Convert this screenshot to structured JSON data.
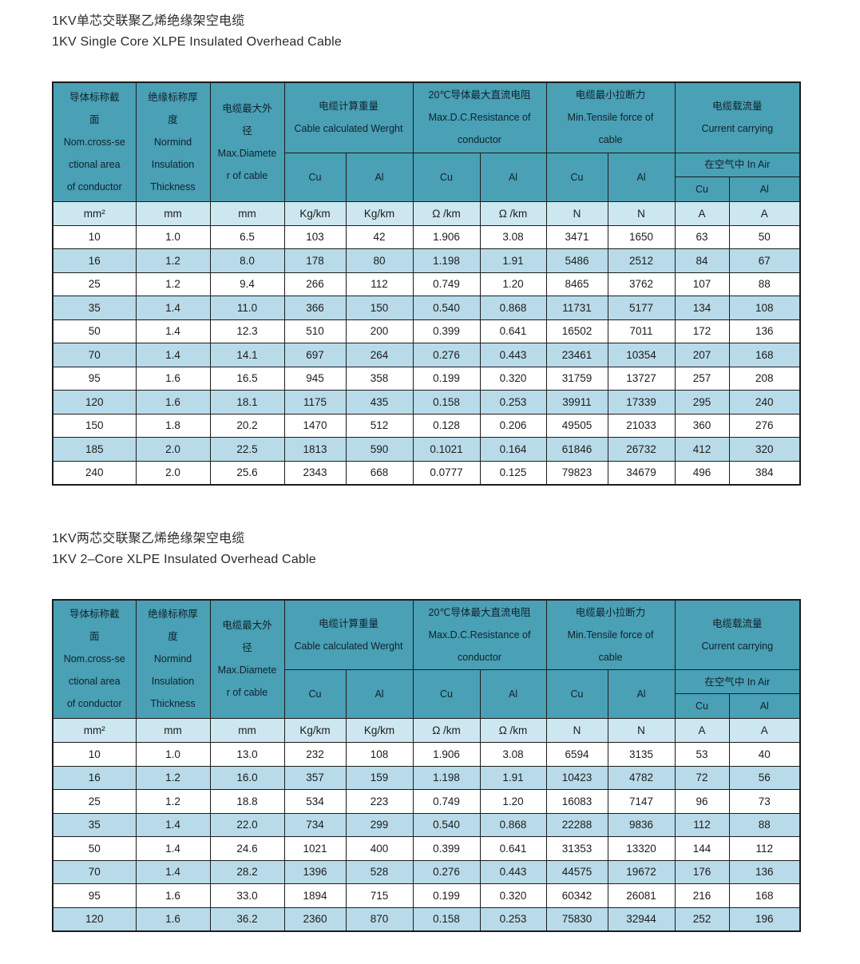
{
  "colors": {
    "header_bg": "#4aa0b5",
    "unit_row_bg": "#cde7f0",
    "alt_row_bg": "#b9dbe9",
    "row_bg": "#ffffff",
    "border": "#1c1c1c"
  },
  "table_header": {
    "conductor": "导体标称截\n面\nNom.cross-se\nctional area\nof conductor",
    "insulation": "绝缘标称厚\n度\nNormind\nInsulation\nThickness",
    "diameter": "电缆最大外\n径\nMax.Diamete\nr of cable",
    "weight": "电缆计算重量\nCable calculated Werght",
    "resistance": "20℃导体最大直流电阻\nMax.D.C.Resistance of\nconductor",
    "tensile": "电缆最小拉断力\nMin.Tensile force of\ncable",
    "current": "电缆载流量\nCurrent carrying",
    "in_air": "在空气中  In Air",
    "cu": "Cu",
    "al": "Al",
    "units": [
      "mm²",
      "mm",
      "mm",
      "Kg/km",
      "Kg/km",
      "Ω /km",
      "Ω /km",
      "N",
      "N",
      "A",
      "A"
    ]
  },
  "table1": {
    "title_zh": "1KV单芯交联聚乙烯绝缘架空电缆",
    "title_en": "1KV Single Core XLPE Insulated Overhead Cable",
    "rows": [
      [
        "10",
        "1.0",
        "6.5",
        "103",
        "42",
        "1.906",
        "3.08",
        "3471",
        "1650",
        "63",
        "50"
      ],
      [
        "16",
        "1.2",
        "8.0",
        "178",
        "80",
        "1.198",
        "1.91",
        "5486",
        "2512",
        "84",
        "67"
      ],
      [
        "25",
        "1.2",
        "9.4",
        "266",
        "112",
        "0.749",
        "1.20",
        "8465",
        "3762",
        "107",
        "88"
      ],
      [
        "35",
        "1.4",
        "11.0",
        "366",
        "150",
        "0.540",
        "0.868",
        "11731",
        "5177",
        "134",
        "108"
      ],
      [
        "50",
        "1.4",
        "12.3",
        "510",
        "200",
        "0.399",
        "0.641",
        "16502",
        "7011",
        "172",
        "136"
      ],
      [
        "70",
        "1.4",
        "14.1",
        "697",
        "264",
        "0.276",
        "0.443",
        "23461",
        "10354",
        "207",
        "168"
      ],
      [
        "95",
        "1.6",
        "16.5",
        "945",
        "358",
        "0.199",
        "0.320",
        "31759",
        "13727",
        "257",
        "208"
      ],
      [
        "120",
        "1.6",
        "18.1",
        "1175",
        "435",
        "0.158",
        "0.253",
        "39911",
        "17339",
        "295",
        "240"
      ],
      [
        "150",
        "1.8",
        "20.2",
        "1470",
        "512",
        "0.128",
        "0.206",
        "49505",
        "21033",
        "360",
        "276"
      ],
      [
        "185",
        "2.0",
        "22.5",
        "1813",
        "590",
        "0.1021",
        "0.164",
        "61846",
        "26732",
        "412",
        "320"
      ],
      [
        "240",
        "2.0",
        "25.6",
        "2343",
        "668",
        "0.0777",
        "0.125",
        "79823",
        "34679",
        "496",
        "384"
      ]
    ]
  },
  "table2": {
    "title_zh": "1KV两芯交联聚乙烯绝缘架空电缆",
    "title_en": "1KV 2–Core XLPE Insulated Overhead Cable",
    "rows": [
      [
        "10",
        "1.0",
        "13.0",
        "232",
        "108",
        "1.906",
        "3.08",
        "6594",
        "3135",
        "53",
        "40"
      ],
      [
        "16",
        "1.2",
        "16.0",
        "357",
        "159",
        "1.198",
        "1.91",
        "10423",
        "4782",
        "72",
        "56"
      ],
      [
        "25",
        "1.2",
        "18.8",
        "534",
        "223",
        "0.749",
        "1.20",
        "16083",
        "7147",
        "96",
        "73"
      ],
      [
        "35",
        "1.4",
        "22.0",
        "734",
        "299",
        "0.540",
        "0.868",
        "22288",
        "9836",
        "112",
        "88"
      ],
      [
        "50",
        "1.4",
        "24.6",
        "1021",
        "400",
        "0.399",
        "0.641",
        "31353",
        "13320",
        "144",
        "112"
      ],
      [
        "70",
        "1.4",
        "28.2",
        "1396",
        "528",
        "0.276",
        "0.443",
        "44575",
        "19672",
        "176",
        "136"
      ],
      [
        "95",
        "1.6",
        "33.0",
        "1894",
        "715",
        "0.199",
        "0.320",
        "60342",
        "26081",
        "216",
        "168"
      ],
      [
        "120",
        "1.6",
        "36.2",
        "2360",
        "870",
        "0.158",
        "0.253",
        "75830",
        "32944",
        "252",
        "196"
      ]
    ]
  }
}
